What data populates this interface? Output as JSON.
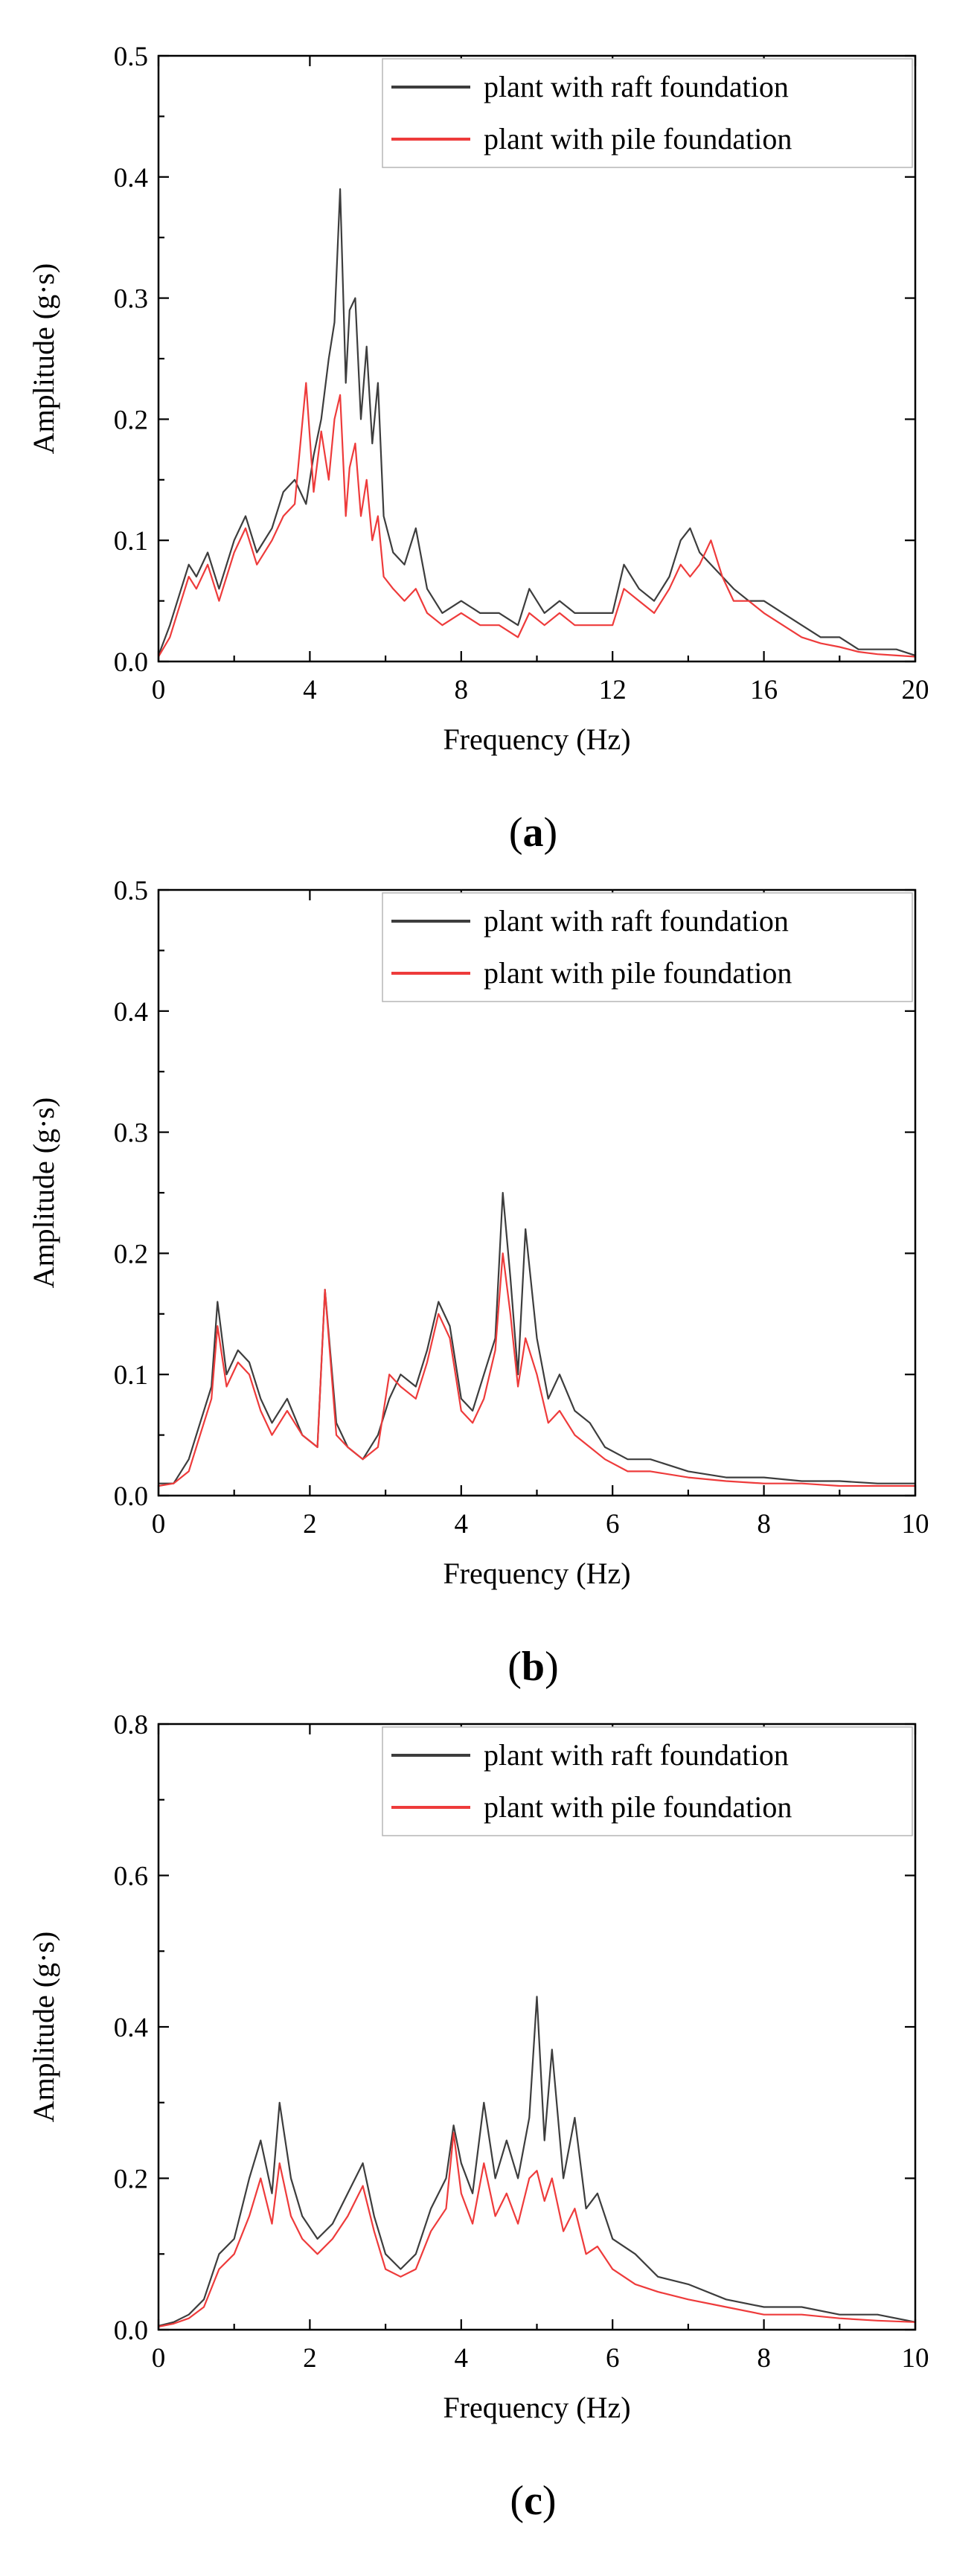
{
  "chart_data": [
    {
      "type": "line",
      "panel": "a",
      "panel_label": "a",
      "xlabel": "Frequency (Hz)",
      "ylabel": "Amplitude (g·s)",
      "xlim": [
        0,
        20
      ],
      "ylim": [
        0,
        0.5
      ],
      "xticks": [
        0,
        4,
        8,
        12,
        16,
        20
      ],
      "yticks": [
        0.0,
        0.1,
        0.2,
        0.3,
        0.4,
        0.5
      ],
      "xtick_labels": [
        "0",
        "4",
        "8",
        "12",
        "16",
        "20"
      ],
      "ytick_labels": [
        "0.0",
        "0.1",
        "0.2",
        "0.3",
        "0.4",
        "0.5"
      ],
      "legend_position": "top-right",
      "series": [
        {
          "name": "plant with raft foundation",
          "color": "#3d3d3d",
          "x": [
            0,
            0.3,
            0.6,
            0.8,
            1.0,
            1.3,
            1.6,
            2.0,
            2.3,
            2.6,
            3.0,
            3.3,
            3.6,
            3.9,
            4.1,
            4.3,
            4.5,
            4.65,
            4.8,
            4.95,
            5.05,
            5.2,
            5.35,
            5.5,
            5.65,
            5.8,
            5.95,
            6.2,
            6.5,
            6.8,
            7.1,
            7.5,
            8.0,
            8.5,
            9.0,
            9.5,
            9.8,
            10.2,
            10.6,
            11.0,
            11.5,
            12.0,
            12.3,
            12.7,
            13.1,
            13.5,
            13.8,
            14.05,
            14.3,
            14.6,
            14.9,
            15.2,
            15.6,
            16.0,
            16.5,
            17.0,
            17.5,
            18.0,
            18.5,
            19.0,
            19.5,
            20.0
          ],
          "values": [
            0.005,
            0.03,
            0.06,
            0.08,
            0.07,
            0.09,
            0.06,
            0.1,
            0.12,
            0.09,
            0.11,
            0.14,
            0.15,
            0.13,
            0.17,
            0.2,
            0.25,
            0.28,
            0.39,
            0.23,
            0.29,
            0.3,
            0.2,
            0.26,
            0.18,
            0.23,
            0.12,
            0.09,
            0.08,
            0.11,
            0.06,
            0.04,
            0.05,
            0.04,
            0.04,
            0.03,
            0.06,
            0.04,
            0.05,
            0.04,
            0.04,
            0.04,
            0.08,
            0.06,
            0.05,
            0.07,
            0.1,
            0.11,
            0.09,
            0.08,
            0.07,
            0.06,
            0.05,
            0.05,
            0.04,
            0.03,
            0.02,
            0.02,
            0.01,
            0.01,
            0.01,
            0.005
          ]
        },
        {
          "name": "plant with pile foundation",
          "color": "#ee3b3b",
          "x": [
            0,
            0.3,
            0.6,
            0.8,
            1.0,
            1.3,
            1.6,
            2.0,
            2.3,
            2.6,
            3.0,
            3.3,
            3.6,
            3.9,
            4.1,
            4.3,
            4.5,
            4.65,
            4.8,
            4.95,
            5.05,
            5.2,
            5.35,
            5.5,
            5.65,
            5.8,
            5.95,
            6.2,
            6.5,
            6.8,
            7.1,
            7.5,
            8.0,
            8.5,
            9.0,
            9.5,
            9.8,
            10.2,
            10.6,
            11.0,
            11.5,
            12.0,
            12.3,
            12.7,
            13.1,
            13.5,
            13.8,
            14.05,
            14.3,
            14.6,
            14.9,
            15.2,
            15.6,
            16.0,
            16.5,
            17.0,
            17.5,
            18.0,
            18.5,
            19.0,
            19.5,
            20.0
          ],
          "values": [
            0.004,
            0.02,
            0.05,
            0.07,
            0.06,
            0.08,
            0.05,
            0.09,
            0.11,
            0.08,
            0.1,
            0.12,
            0.13,
            0.23,
            0.14,
            0.19,
            0.15,
            0.2,
            0.22,
            0.12,
            0.16,
            0.18,
            0.12,
            0.15,
            0.1,
            0.12,
            0.07,
            0.06,
            0.05,
            0.06,
            0.04,
            0.03,
            0.04,
            0.03,
            0.03,
            0.02,
            0.04,
            0.03,
            0.04,
            0.03,
            0.03,
            0.03,
            0.06,
            0.05,
            0.04,
            0.06,
            0.08,
            0.07,
            0.08,
            0.1,
            0.07,
            0.05,
            0.05,
            0.04,
            0.03,
            0.02,
            0.015,
            0.012,
            0.008,
            0.006,
            0.005,
            0.004
          ]
        }
      ]
    },
    {
      "type": "line",
      "panel": "b",
      "panel_label": "b",
      "xlabel": "Frequency (Hz)",
      "ylabel": "Amplitude (g·s)",
      "xlim": [
        0,
        10
      ],
      "ylim": [
        0,
        0.5
      ],
      "xticks": [
        0,
        2,
        4,
        6,
        8,
        10
      ],
      "yticks": [
        0.0,
        0.1,
        0.2,
        0.3,
        0.4,
        0.5
      ],
      "xtick_labels": [
        "0",
        "2",
        "4",
        "6",
        "8",
        "10"
      ],
      "ytick_labels": [
        "0.0",
        "0.1",
        "0.2",
        "0.3",
        "0.4",
        "0.5"
      ],
      "legend_position": "top-right",
      "series": [
        {
          "name": "plant with raft foundation",
          "color": "#3d3d3d",
          "x": [
            0,
            0.2,
            0.4,
            0.55,
            0.7,
            0.78,
            0.9,
            1.05,
            1.2,
            1.35,
            1.5,
            1.7,
            1.9,
            2.1,
            2.2,
            2.35,
            2.5,
            2.7,
            2.9,
            3.05,
            3.2,
            3.4,
            3.55,
            3.7,
            3.85,
            4.0,
            4.15,
            4.3,
            4.45,
            4.55,
            4.65,
            4.75,
            4.85,
            5.0,
            5.15,
            5.3,
            5.5,
            5.7,
            5.9,
            6.2,
            6.5,
            7.0,
            7.5,
            8.0,
            8.5,
            9.0,
            9.5,
            10.0
          ],
          "values": [
            0.01,
            0.01,
            0.03,
            0.06,
            0.09,
            0.16,
            0.1,
            0.12,
            0.11,
            0.08,
            0.06,
            0.08,
            0.05,
            0.04,
            0.17,
            0.06,
            0.04,
            0.03,
            0.05,
            0.08,
            0.1,
            0.09,
            0.12,
            0.16,
            0.14,
            0.08,
            0.07,
            0.1,
            0.13,
            0.25,
            0.18,
            0.1,
            0.22,
            0.13,
            0.08,
            0.1,
            0.07,
            0.06,
            0.04,
            0.03,
            0.03,
            0.02,
            0.015,
            0.015,
            0.012,
            0.012,
            0.01,
            0.01
          ]
        },
        {
          "name": "plant with pile foundation",
          "color": "#ee3b3b",
          "x": [
            0,
            0.2,
            0.4,
            0.55,
            0.7,
            0.78,
            0.9,
            1.05,
            1.2,
            1.35,
            1.5,
            1.7,
            1.9,
            2.1,
            2.2,
            2.35,
            2.5,
            2.7,
            2.9,
            3.05,
            3.2,
            3.4,
            3.55,
            3.7,
            3.85,
            4.0,
            4.15,
            4.3,
            4.45,
            4.55,
            4.65,
            4.75,
            4.85,
            5.0,
            5.15,
            5.3,
            5.5,
            5.7,
            5.9,
            6.2,
            6.5,
            7.0,
            7.5,
            8.0,
            8.5,
            9.0,
            9.5,
            10.0
          ],
          "values": [
            0.008,
            0.01,
            0.02,
            0.05,
            0.08,
            0.14,
            0.09,
            0.11,
            0.1,
            0.07,
            0.05,
            0.07,
            0.05,
            0.04,
            0.17,
            0.05,
            0.04,
            0.03,
            0.04,
            0.1,
            0.09,
            0.08,
            0.11,
            0.15,
            0.13,
            0.07,
            0.06,
            0.08,
            0.12,
            0.2,
            0.15,
            0.09,
            0.13,
            0.1,
            0.06,
            0.07,
            0.05,
            0.04,
            0.03,
            0.02,
            0.02,
            0.015,
            0.012,
            0.01,
            0.01,
            0.008,
            0.008,
            0.008
          ]
        }
      ]
    },
    {
      "type": "line",
      "panel": "c",
      "panel_label": "c",
      "xlabel": "Frequency (Hz)",
      "ylabel": "Amplitude (g·s)",
      "xlim": [
        0,
        10
      ],
      "ylim": [
        0,
        0.8
      ],
      "xticks": [
        0,
        2,
        4,
        6,
        8,
        10
      ],
      "yticks": [
        0.0,
        0.2,
        0.4,
        0.6,
        0.8
      ],
      "xtick_labels": [
        "0",
        "2",
        "4",
        "6",
        "8",
        "10"
      ],
      "ytick_labels": [
        "0.0",
        "0.2",
        "0.4",
        "0.6",
        "0.8"
      ],
      "legend_position": "top-right",
      "series": [
        {
          "name": "plant with raft foundation",
          "color": "#3d3d3d",
          "x": [
            0,
            0.2,
            0.4,
            0.6,
            0.8,
            1.0,
            1.2,
            1.35,
            1.5,
            1.6,
            1.75,
            1.9,
            2.1,
            2.3,
            2.5,
            2.7,
            2.85,
            3.0,
            3.2,
            3.4,
            3.6,
            3.8,
            3.9,
            4.0,
            4.15,
            4.3,
            4.45,
            4.6,
            4.75,
            4.9,
            5.0,
            5.1,
            5.2,
            5.35,
            5.5,
            5.65,
            5.8,
            6.0,
            6.3,
            6.6,
            7.0,
            7.5,
            8.0,
            8.5,
            9.0,
            9.5,
            10.0
          ],
          "values": [
            0.005,
            0.01,
            0.02,
            0.04,
            0.1,
            0.12,
            0.2,
            0.25,
            0.18,
            0.3,
            0.2,
            0.15,
            0.12,
            0.14,
            0.18,
            0.22,
            0.15,
            0.1,
            0.08,
            0.1,
            0.16,
            0.2,
            0.27,
            0.22,
            0.18,
            0.3,
            0.2,
            0.25,
            0.2,
            0.28,
            0.44,
            0.25,
            0.37,
            0.2,
            0.28,
            0.16,
            0.18,
            0.12,
            0.1,
            0.07,
            0.06,
            0.04,
            0.03,
            0.03,
            0.02,
            0.02,
            0.01
          ]
        },
        {
          "name": "plant with pile foundation",
          "color": "#ee3b3b",
          "x": [
            0,
            0.2,
            0.4,
            0.6,
            0.8,
            1.0,
            1.2,
            1.35,
            1.5,
            1.6,
            1.75,
            1.9,
            2.1,
            2.3,
            2.5,
            2.7,
            2.85,
            3.0,
            3.2,
            3.4,
            3.6,
            3.8,
            3.9,
            4.0,
            4.15,
            4.3,
            4.45,
            4.6,
            4.75,
            4.9,
            5.0,
            5.1,
            5.2,
            5.35,
            5.5,
            5.65,
            5.8,
            6.0,
            6.3,
            6.6,
            7.0,
            7.5,
            8.0,
            8.5,
            9.0,
            9.5,
            10.0
          ],
          "values": [
            0.004,
            0.008,
            0.015,
            0.03,
            0.08,
            0.1,
            0.15,
            0.2,
            0.14,
            0.22,
            0.15,
            0.12,
            0.1,
            0.12,
            0.15,
            0.19,
            0.13,
            0.08,
            0.07,
            0.08,
            0.13,
            0.16,
            0.26,
            0.18,
            0.14,
            0.22,
            0.15,
            0.18,
            0.14,
            0.2,
            0.21,
            0.17,
            0.2,
            0.13,
            0.16,
            0.1,
            0.11,
            0.08,
            0.06,
            0.05,
            0.04,
            0.03,
            0.02,
            0.02,
            0.015,
            0.012,
            0.01
          ]
        }
      ]
    }
  ]
}
